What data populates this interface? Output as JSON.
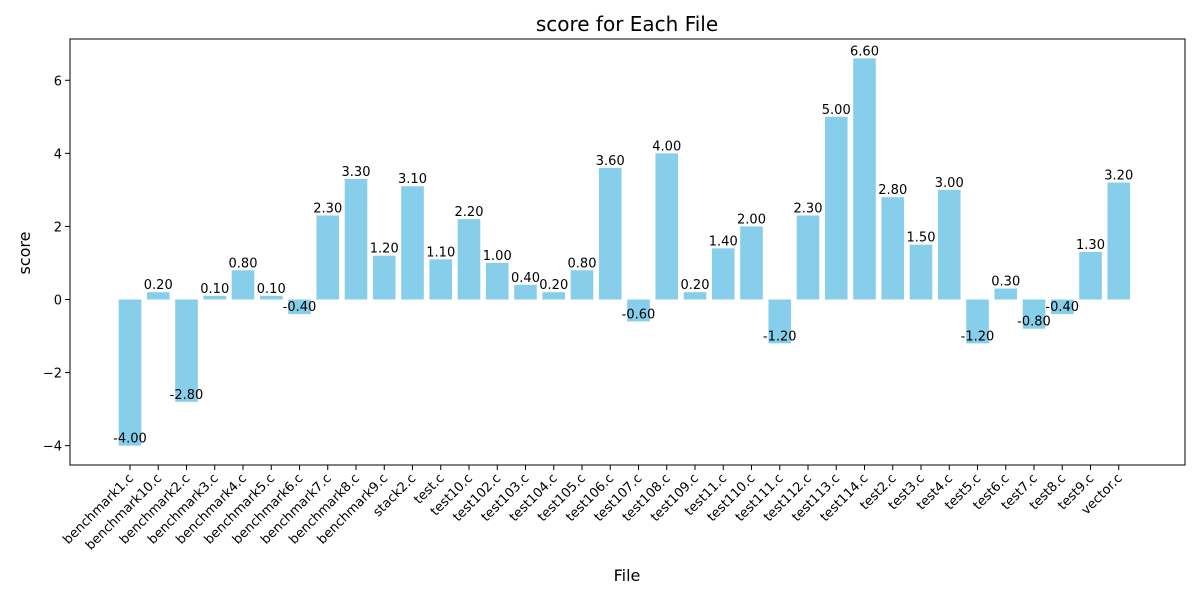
{
  "chart_data": {
    "type": "bar",
    "title": "score for Each File",
    "xlabel": "File",
    "ylabel": "score",
    "categories": [
      "benchmark1.c",
      "benchmark10.c",
      "benchmark2.c",
      "benchmark3.c",
      "benchmark4.c",
      "benchmark5.c",
      "benchmark6.c",
      "benchmark7.c",
      "benchmark8.c",
      "benchmark9.c",
      "stack2.c",
      "test.c",
      "test10.c",
      "test102.c",
      "test103.c",
      "test104.c",
      "test105.c",
      "test106.c",
      "test107.c",
      "test108.c",
      "test109.c",
      "test11.c",
      "test110.c",
      "test111.c",
      "test112.c",
      "test113.c",
      "test114.c",
      "test2.c",
      "test3.c",
      "test4.c",
      "test5.c",
      "test6.c",
      "test7.c",
      "test8.c",
      "test9.c",
      "vector.c"
    ],
    "values": [
      -4.0,
      0.2,
      -2.8,
      0.1,
      0.8,
      0.1,
      -0.4,
      2.3,
      3.3,
      1.2,
      3.1,
      1.1,
      2.2,
      1.0,
      0.4,
      0.2,
      0.8,
      3.6,
      -0.6,
      4.0,
      0.2,
      1.4,
      2.0,
      -1.2,
      2.3,
      5.0,
      6.6,
      2.8,
      1.5,
      3.0,
      -1.2,
      0.3,
      -0.8,
      -0.4,
      1.3,
      3.2
    ],
    "data_labels": [
      "-4.00",
      "0.20",
      "-2.80",
      "0.10",
      "0.80",
      "0.10",
      "-0.40",
      "2.30",
      "3.30",
      "1.20",
      "3.10",
      "1.10",
      "2.20",
      "1.00",
      "0.40",
      "0.20",
      "0.80",
      "3.60",
      "-0.60",
      "4.00",
      "0.20",
      "1.40",
      "2.00",
      "-1.20",
      "2.30",
      "5.00",
      "6.60",
      "2.80",
      "1.50",
      "3.00",
      "-1.20",
      "0.30",
      "-0.80",
      "-0.40",
      "1.30",
      "3.20"
    ],
    "yticks": [
      -4,
      -2,
      0,
      2,
      4,
      6
    ],
    "ytick_labels": [
      "−4",
      "−2",
      "0",
      "2",
      "4",
      "6"
    ],
    "ylim": [
      -4.53,
      7.13
    ],
    "bar_color": "#87ceeb",
    "grid": false,
    "legend": "none"
  }
}
